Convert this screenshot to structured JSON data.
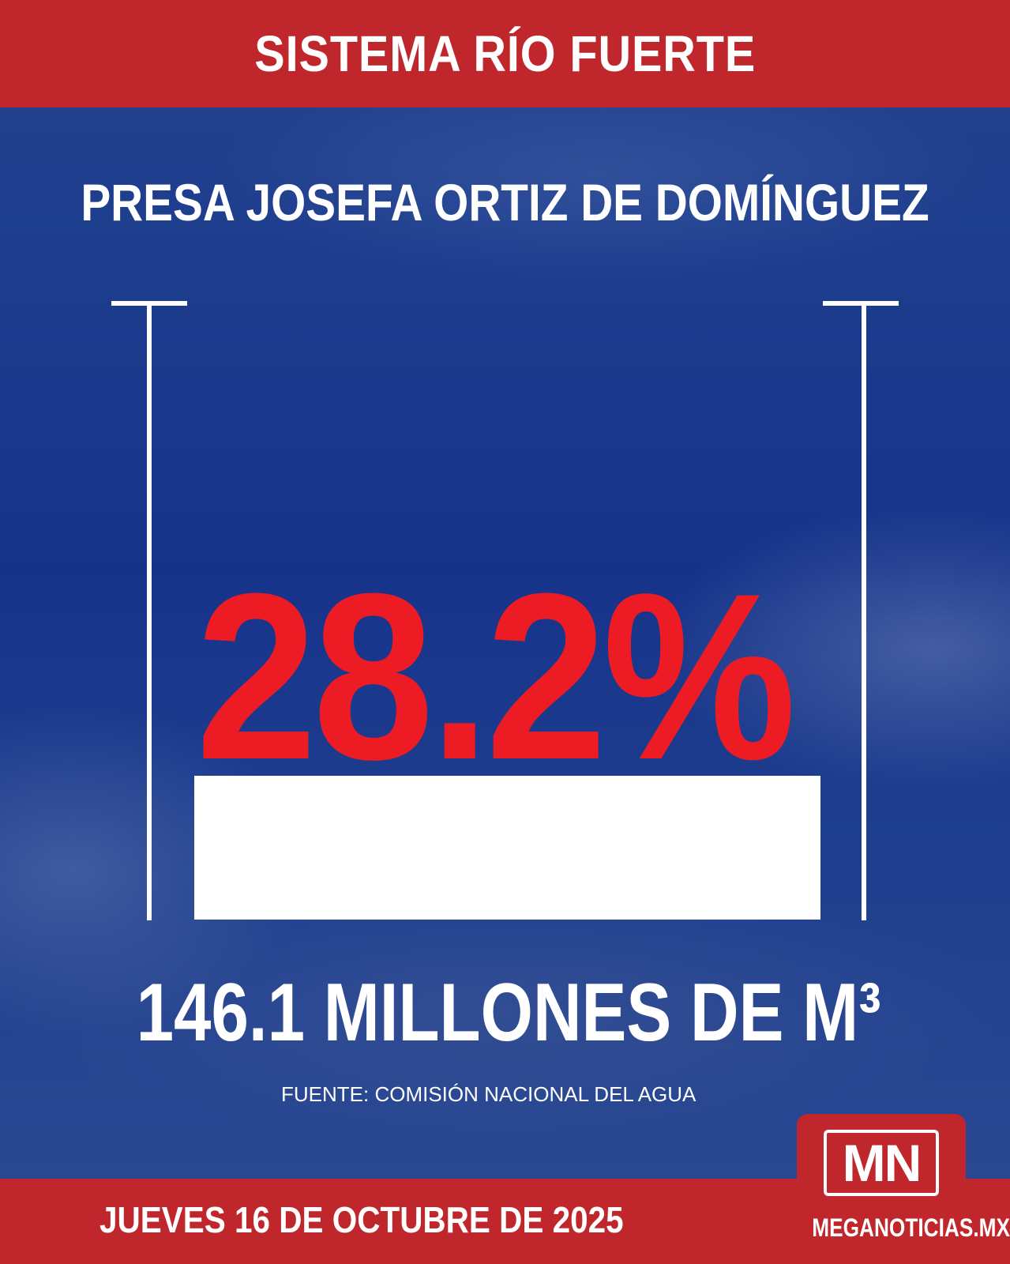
{
  "header": {
    "title": "SISTEMA RÍO FUERTE"
  },
  "dam": {
    "name": "PRESA JOSEFA ORTIZ DE DOMÍNGUEZ"
  },
  "storage": {
    "percent_label": "28.2%",
    "percent_value": 28.2,
    "volume_label": "146.1 MILLONES DE M³"
  },
  "source": "FUENTE: COMISIÓN NACIONAL DEL AGUA",
  "footer": {
    "date": "JUEVES 16 DE OCTUBRE DE 2025",
    "logo_text": "MN",
    "site": "MEGANOTICIAS.MX"
  },
  "colors": {
    "brand_red": "#c0272d",
    "percent_red": "#ed1c24",
    "background_blue": "#1b3a8c"
  }
}
